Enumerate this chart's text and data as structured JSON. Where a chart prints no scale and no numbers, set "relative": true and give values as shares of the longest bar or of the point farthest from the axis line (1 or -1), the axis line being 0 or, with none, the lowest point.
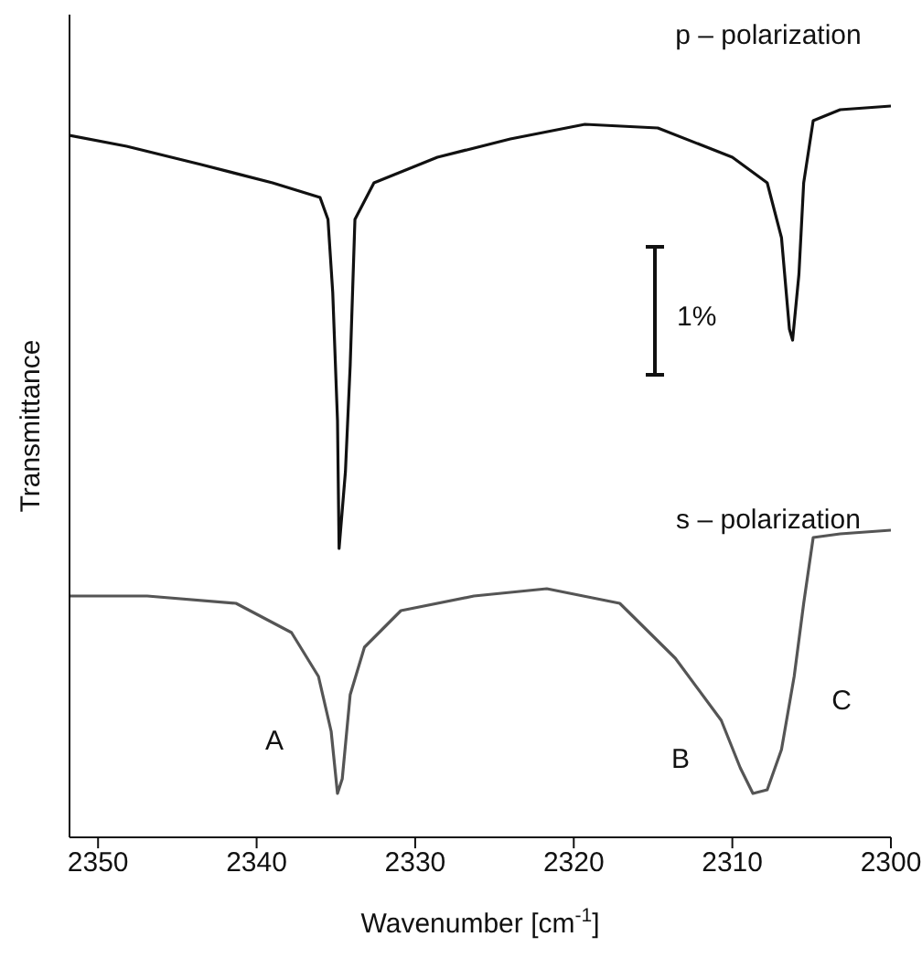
{
  "chart_data": {
    "type": "line",
    "relative": true,
    "xlabel": "Wavenumber [cm$^{-1}$]",
    "ylabel": "Transmittance",
    "xlim": [
      2351.8,
      2300
    ],
    "xticks": [
      2350,
      2340,
      2330,
      2320,
      2310,
      2300
    ],
    "grid": false,
    "annotations": [
      "p – polarization",
      "s – polarization",
      "1%",
      "A",
      "B",
      "C"
    ],
    "series": [
      {
        "color": "#111111",
        "x": [
          2351.8,
          2348.2,
          2343.5,
          2339,
          2336,
          2335.5,
          2335.2,
          2334.9,
          2334.8,
          2334.4,
          2334.1,
          2333.8,
          2332.6,
          2328.6,
          2324,
          2319.3,
          2314.7,
          2310,
          2307.8,
          2306.9,
          2306.4,
          2306.2,
          2305.8,
          2305.5,
          2304.9,
          2303.2,
          2300
        ],
        "values": [
          0.96,
          0.945,
          0.92,
          0.895,
          0.875,
          0.845,
          0.745,
          0.57,
          0.395,
          0.5,
          0.645,
          0.845,
          0.895,
          0.93,
          0.955,
          0.975,
          0.97,
          0.93,
          0.895,
          0.82,
          0.695,
          0.68,
          0.77,
          0.895,
          0.98,
          0.995,
          1.0
        ]
      },
      {
        "color": "#555555",
        "x": [
          2351.8,
          2346.9,
          2341.3,
          2337.8,
          2336.1,
          2335.3,
          2334.9,
          2334.6,
          2334.1,
          2333.2,
          2330.9,
          2326.3,
          2321.7,
          2317.1,
          2313.6,
          2310.7,
          2309.5,
          2308.7,
          2307.8,
          2306.9,
          2306.1,
          2305.5,
          2304.9,
          2303.2,
          2300
        ],
        "values": [
          0.33,
          0.33,
          0.32,
          0.28,
          0.22,
          0.145,
          0.06,
          0.08,
          0.195,
          0.26,
          0.31,
          0.33,
          0.34,
          0.32,
          0.245,
          0.16,
          0.095,
          0.06,
          0.065,
          0.12,
          0.22,
          0.32,
          0.41,
          0.415,
          0.42
        ]
      }
    ]
  }
}
